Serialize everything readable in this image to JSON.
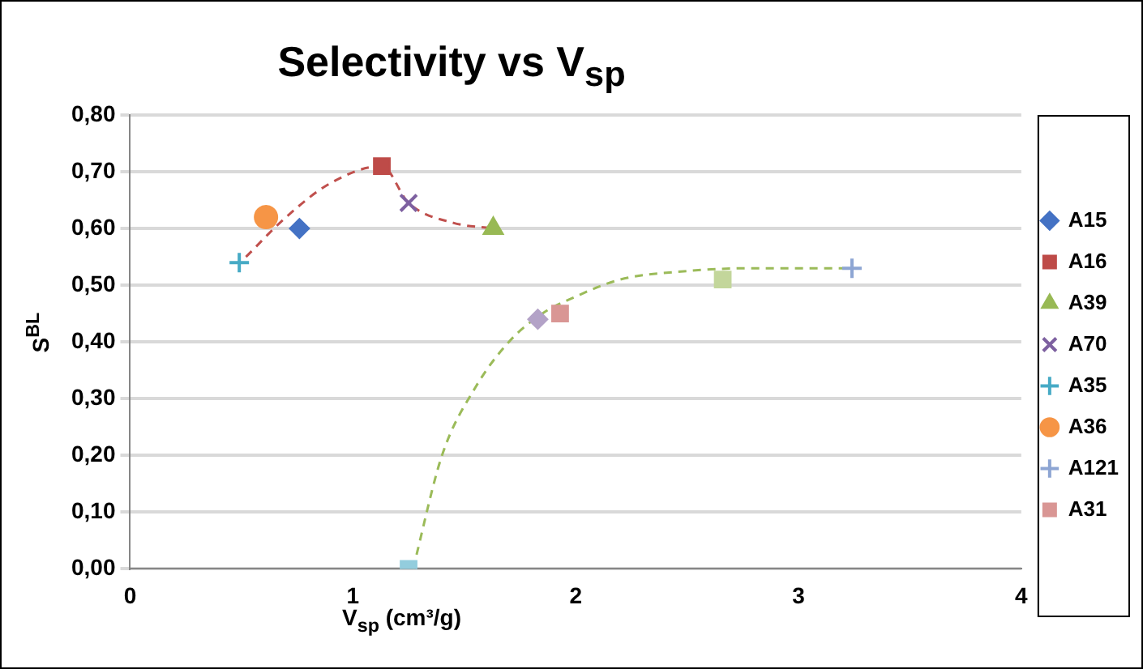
{
  "chart_data": {
    "type": "scatter",
    "title": "Selectivity vs V$_{sp}$",
    "xlabel": "V$_{sp}$ (cm³/g)",
    "ylabel": "S$^{BL}$",
    "xlim": [
      0,
      4
    ],
    "xticks": [
      0,
      1,
      2,
      3,
      4
    ],
    "ylim": [
      0,
      0.8
    ],
    "yticks": [
      {
        "value": 0,
        "label": "0,00"
      },
      {
        "value": 0.1,
        "label": "0,10"
      },
      {
        "value": 0.2,
        "label": "0,20"
      },
      {
        "value": 0.3,
        "label": "0,30"
      },
      {
        "value": 0.4,
        "label": "0,40"
      },
      {
        "value": 0.5,
        "label": "0,50"
      },
      {
        "value": 0.6,
        "label": "0,60"
      },
      {
        "value": 0.7,
        "label": "0,70"
      },
      {
        "value": 0.8,
        "label": "0,80"
      }
    ],
    "grid": "y",
    "legend": "right",
    "series": [
      {
        "name": "A15",
        "color": "#4472c4",
        "marker": "diamond",
        "x": [
          0.76
        ],
        "values": [
          0.6
        ]
      },
      {
        "name": "A16",
        "color": "#be4b48",
        "marker": "square",
        "x": [
          1.13
        ],
        "values": [
          0.71
        ]
      },
      {
        "name": "A39",
        "color": "#98b954",
        "marker": "triangle",
        "x": [
          1.63
        ],
        "values": [
          0.6
        ]
      },
      {
        "name": "A70",
        "color": "#7d60a0",
        "marker": "x",
        "x": [
          1.25
        ],
        "values": [
          0.645
        ]
      },
      {
        "name": "A35",
        "color": "#46aac5",
        "marker": "cross",
        "x": [
          0.49
        ],
        "values": [
          0.54
        ]
      },
      {
        "name": "A36",
        "color": "#f69546",
        "marker": "circle",
        "x": [
          0.61
        ],
        "values": [
          0.62
        ]
      },
      {
        "name": "A121",
        "color": "#8da5d3",
        "marker": "cross",
        "x": [
          3.24
        ],
        "values": [
          0.53
        ]
      },
      {
        "name": "A31",
        "color": "#d99694",
        "marker": "square",
        "x": [
          1.93
        ],
        "values": [
          0.45
        ]
      },
      {
        "color": "#c3d69b",
        "marker": "square",
        "x": [
          2.66
        ],
        "values": [
          0.51
        ]
      },
      {
        "color": "#b3a2c7",
        "marker": "diamond",
        "x": [
          1.83
        ],
        "values": [
          0.44
        ]
      },
      {
        "color": "#93cddd",
        "marker": "square",
        "x": [
          1.25
        ],
        "values": [
          0.0
        ]
      },
      {
        "type": "line",
        "color": "#c0504d",
        "line_style": "dashed",
        "marker": "none",
        "x": [
          0.52,
          0.7,
          0.9,
          1.13,
          1.25,
          1.45,
          1.63
        ],
        "values": [
          0.55,
          0.62,
          0.68,
          0.71,
          0.645,
          0.61,
          0.6
        ]
      },
      {
        "type": "line",
        "color": "#9bbb59",
        "line_style": "dashed",
        "marker": "none",
        "x": [
          1.27,
          1.4,
          1.55,
          1.7,
          1.85,
          2.0,
          2.2,
          2.5,
          2.8,
          3.2
        ],
        "values": [
          0.0,
          0.2,
          0.32,
          0.4,
          0.45,
          0.48,
          0.51,
          0.525,
          0.53,
          0.53
        ]
      }
    ]
  }
}
